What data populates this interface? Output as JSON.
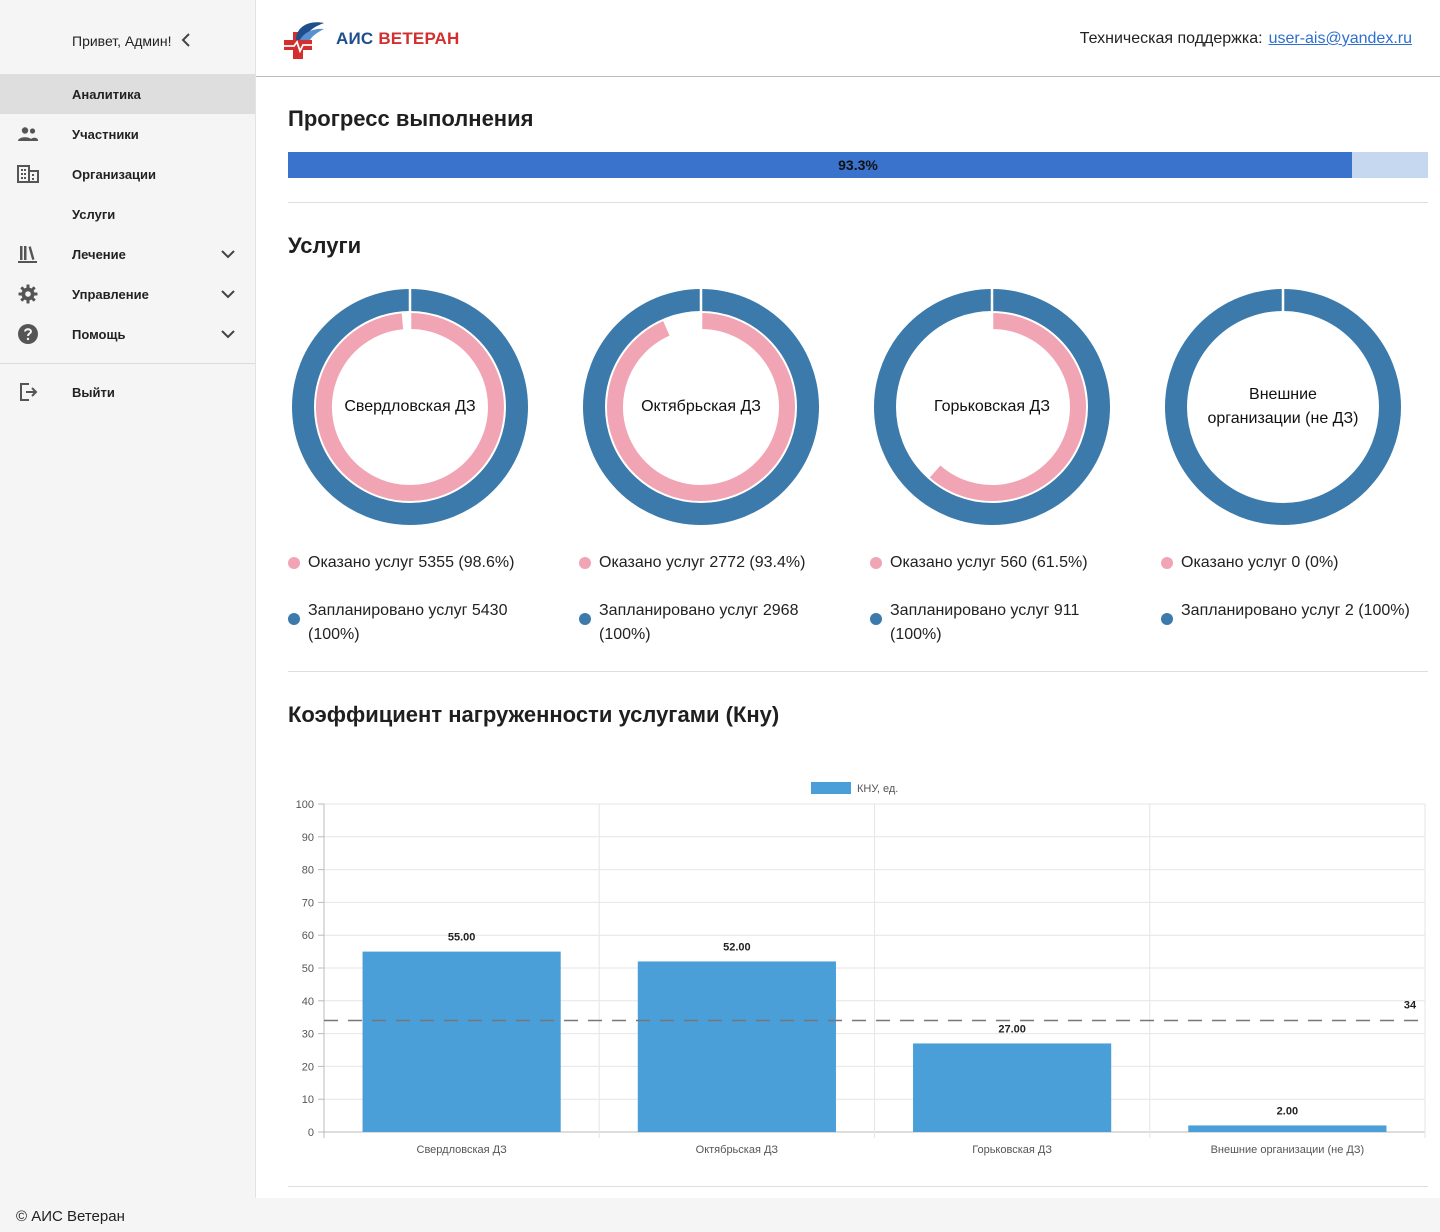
{
  "sidebar": {
    "greeting": "Привет, Админ!",
    "items": [
      {
        "label": "Аналитика",
        "icon": "none",
        "active": true
      },
      {
        "label": "Участники",
        "icon": "people-icon"
      },
      {
        "label": "Организации",
        "icon": "building-icon"
      },
      {
        "label": "Услуги",
        "icon": "none"
      },
      {
        "label": "Лечение",
        "icon": "library-icon",
        "expandable": true
      },
      {
        "label": "Управление",
        "icon": "gear-icon",
        "expandable": true
      },
      {
        "label": "Помощь",
        "icon": "help-icon",
        "expandable": true
      }
    ],
    "logout_label": "Выйти"
  },
  "header": {
    "logo_ais": "АИС",
    "logo_veteran": "ВЕТЕРАН",
    "support_label": "Техническая поддержка:",
    "support_email": "user-ais@yandex.ru"
  },
  "progress": {
    "title": "Прогресс выполнения",
    "percent_text": "93.3%",
    "fraction": 0.933
  },
  "services": {
    "title": "Услуги",
    "colors": {
      "done": "#f1a5b4",
      "planned": "#3b7aab"
    },
    "items": [
      {
        "name": "Свердловская ДЗ",
        "done_fraction": 0.986,
        "done_text": "Оказано услуг 5355 (98.6%)",
        "planned_text": "Запланировано услуг 5430 (100%)"
      },
      {
        "name": "Октябрьская ДЗ",
        "done_fraction": 0.934,
        "done_text": "Оказано услуг 2772 (93.4%)",
        "planned_text": "Запланировано услуг 2968 (100%)"
      },
      {
        "name": "Горьковская ДЗ",
        "done_fraction": 0.615,
        "done_text": "Оказано услуг 560 (61.5%)",
        "planned_text": "Запланировано услуг 911 (100%)"
      },
      {
        "name": "Внешние организации (не ДЗ)",
        "done_fraction": 0,
        "done_text": "Оказано услуг 0 (0%)",
        "planned_text": "Запланировано услуг 2 (100%)"
      }
    ]
  },
  "kny": {
    "title": "Коэффициент нагруженности услугами (Кну)"
  },
  "chart_data": {
    "type": "bar",
    "categories": [
      "Свердловская ДЗ",
      "Октябрьская ДЗ",
      "Горьковская ДЗ",
      "Внешние организации (не ДЗ)"
    ],
    "series": [
      {
        "name": "КНУ, ед.",
        "values": [
          55,
          52,
          27,
          2
        ],
        "labels": [
          "55.00",
          "52.00",
          "27.00",
          "2.00"
        ],
        "color": "#4a9fd8"
      }
    ],
    "ylim": [
      0,
      100
    ],
    "yticks": [
      0,
      10,
      20,
      30,
      40,
      50,
      60,
      70,
      80,
      90,
      100
    ],
    "reference_line": {
      "value": 34,
      "label": "34"
    },
    "legend": "top-center",
    "grid": true
  },
  "footer": {
    "text": "© АИС Ветеран"
  }
}
